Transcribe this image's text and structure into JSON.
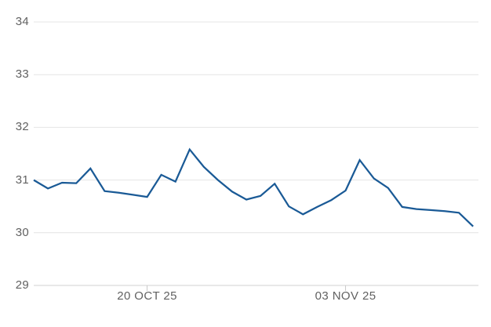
{
  "chart_data": {
    "type": "line",
    "title": "",
    "xlabel": "",
    "ylabel": "",
    "ylim": [
      29,
      34
    ],
    "grid": true,
    "legend": "none",
    "series_count": 1,
    "values": [
      31.0,
      30.84,
      30.95,
      30.94,
      31.22,
      30.79,
      30.76,
      30.72,
      30.68,
      31.1,
      30.97,
      31.58,
      31.25,
      31.0,
      30.78,
      30.63,
      30.7,
      30.93,
      30.5,
      30.35,
      30.49,
      30.62,
      30.8,
      31.38,
      31.03,
      30.85,
      30.49,
      30.45,
      30.43,
      30.41,
      30.38,
      30.12
    ],
    "y_ticks": [
      {
        "label": "34",
        "value": 34
      },
      {
        "label": "33",
        "value": 33
      },
      {
        "label": "32",
        "value": 32
      },
      {
        "label": "31",
        "value": 31
      },
      {
        "label": "30",
        "value": 30
      },
      {
        "label": "29",
        "value": 29
      }
    ],
    "x_ticks": [
      {
        "label": "20 OCT 25",
        "point_index": 8
      },
      {
        "label": "03 NOV 25",
        "point_index": 22
      }
    ],
    "colors": {
      "line": "#1a5a96",
      "gridline": "#e4e4e4",
      "axis": "#d2d2d2",
      "tick": "#c9c9c9",
      "label": "#616161",
      "background": "#ffffff"
    }
  }
}
